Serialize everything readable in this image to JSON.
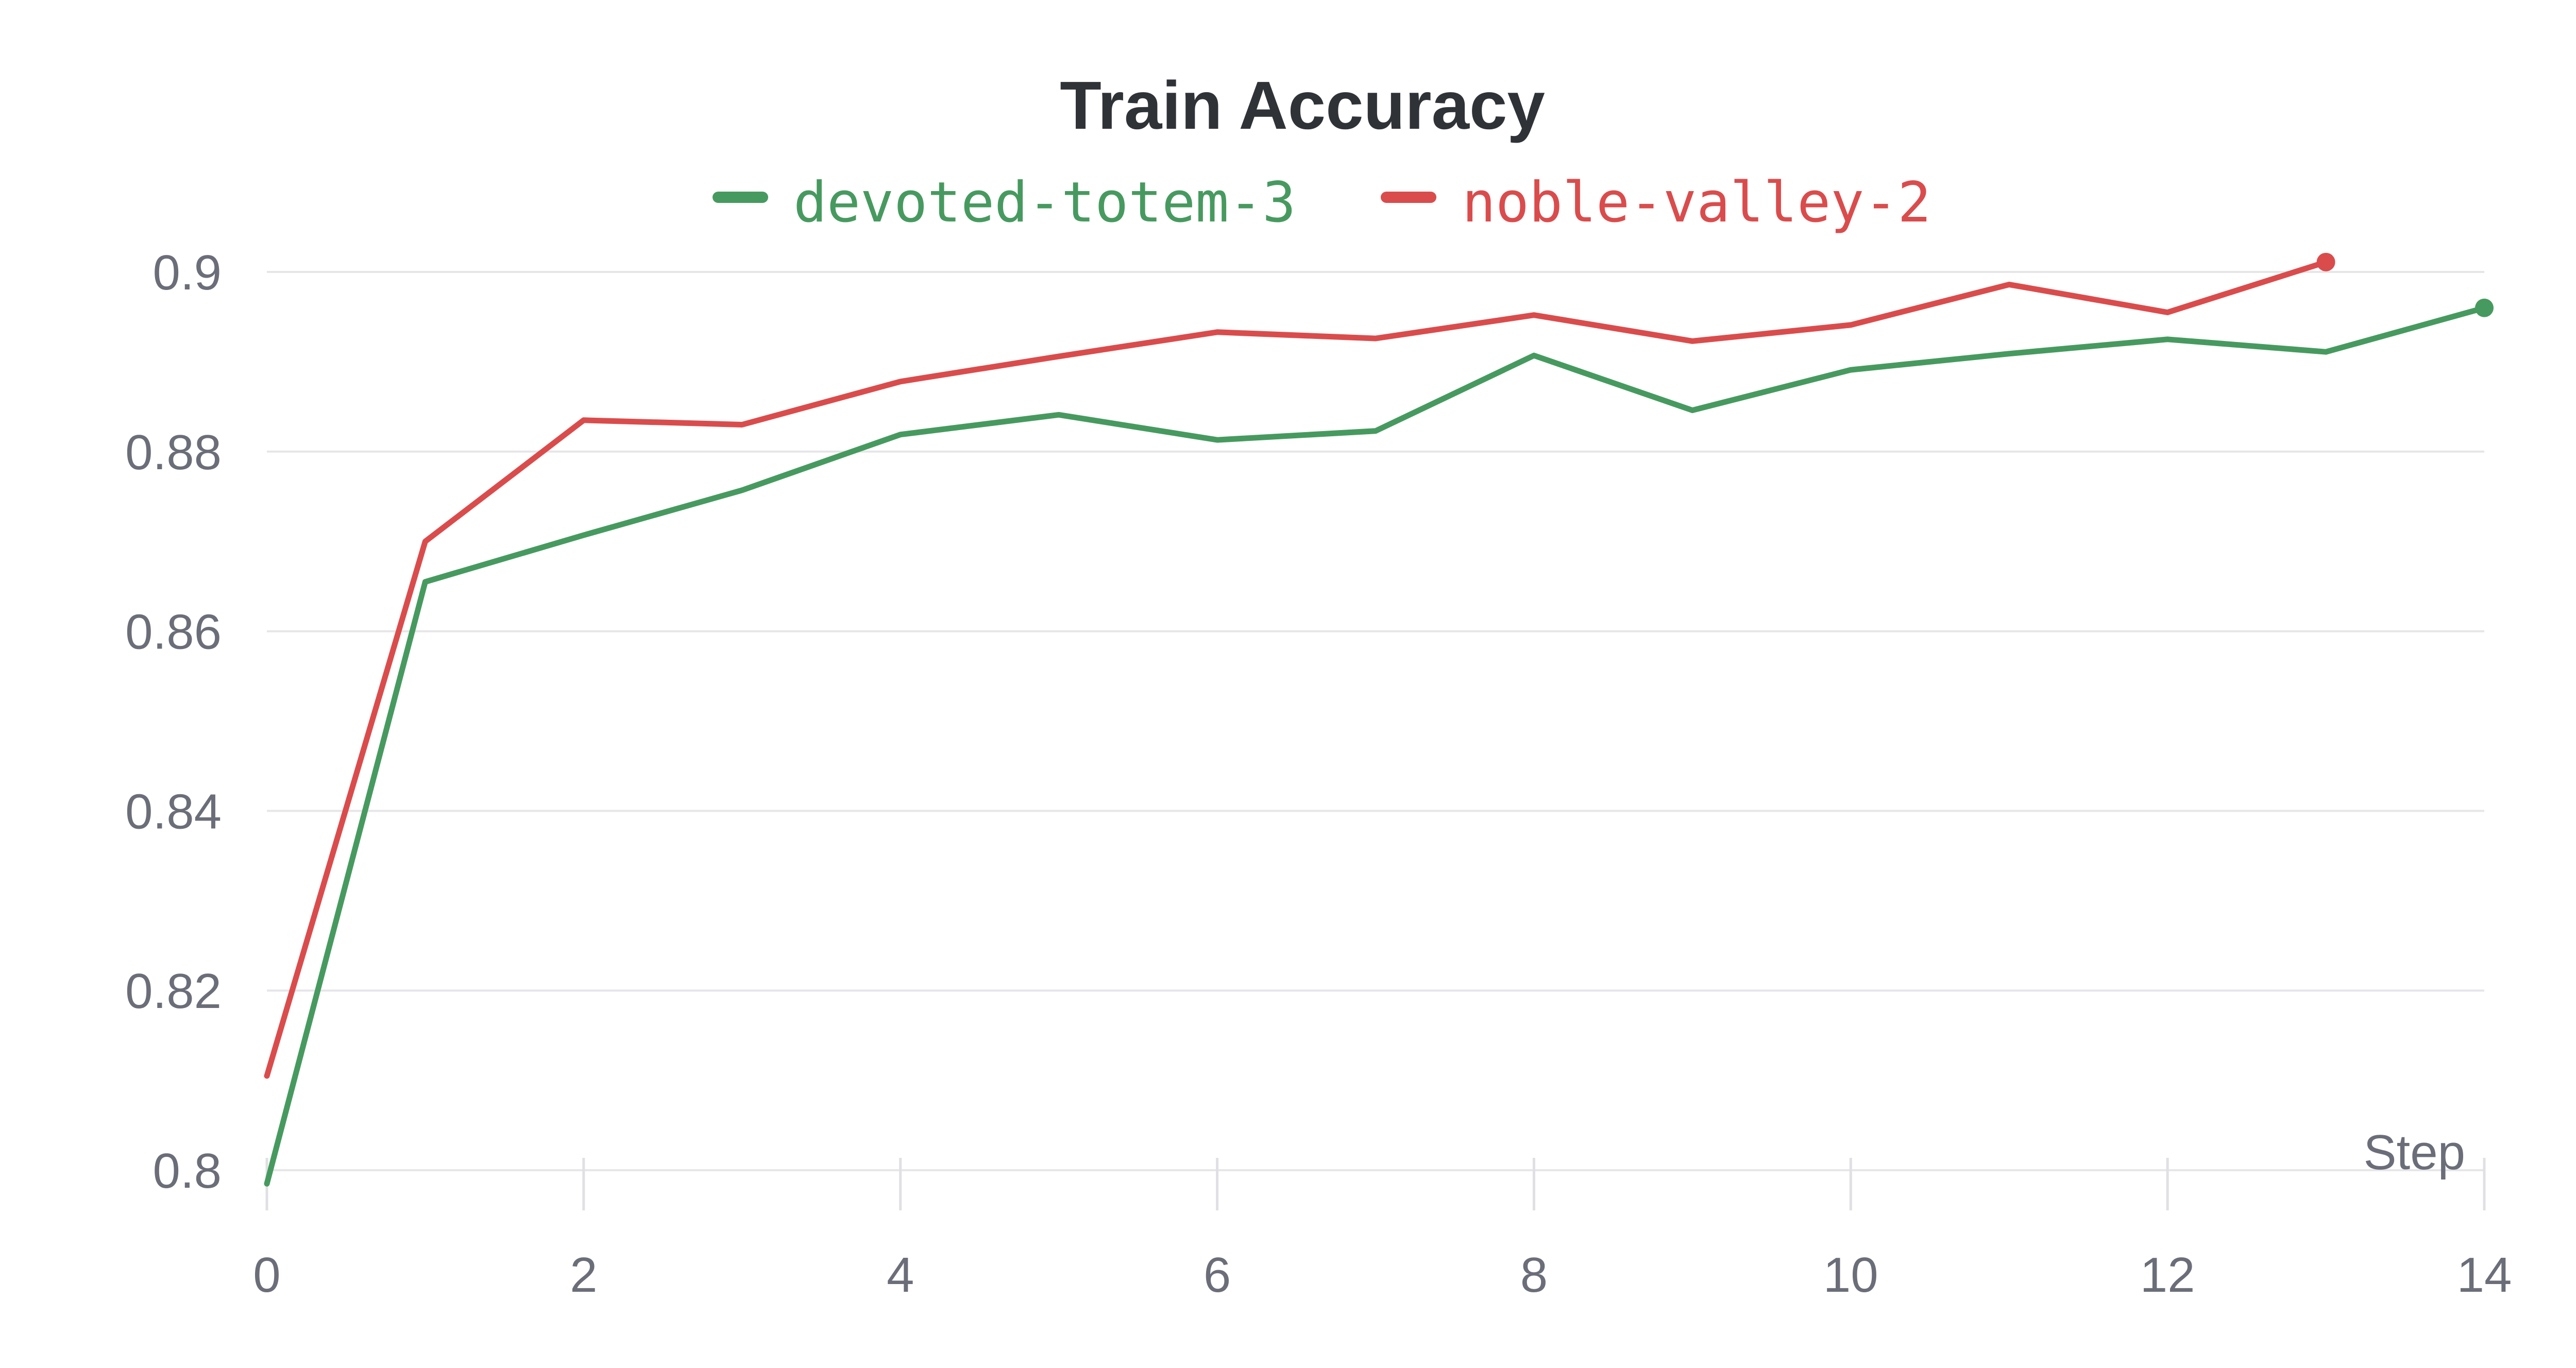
{
  "chart_data": {
    "type": "line",
    "title": "Train Accuracy",
    "xlabel": "Step",
    "ylabel": "",
    "xlim": [
      0,
      14
    ],
    "ylim": [
      0.8,
      0.9
    ],
    "x_ticks": [
      0,
      2,
      4,
      6,
      8,
      10,
      12,
      14
    ],
    "x_tick_labels": [
      "0",
      "2",
      "4",
      "6",
      "8",
      "10",
      "12",
      "14"
    ],
    "y_ticks": [
      0.8,
      0.82,
      0.84,
      0.86,
      0.88,
      0.9
    ],
    "y_tick_labels": [
      "0.8",
      "0.82",
      "0.84",
      "0.86",
      "0.88",
      "0.9"
    ],
    "grid": true,
    "legend_position": "top-center",
    "series": [
      {
        "name": "devoted-totem-3",
        "color": "#479a5f",
        "x": [
          0,
          1,
          2,
          3,
          4,
          5,
          6,
          7,
          8,
          9,
          10,
          11,
          12,
          13,
          14
        ],
        "values": [
          0.7985,
          0.8655,
          0.8707,
          0.8757,
          0.8819,
          0.8841,
          0.8813,
          0.8823,
          0.8907,
          0.8846,
          0.8891,
          0.8909,
          0.8925,
          0.8911,
          0.896
        ],
        "end_marker": true
      },
      {
        "name": "noble-valley-2",
        "color": "#da4c4c",
        "x": [
          0,
          1,
          2,
          3,
          4,
          5,
          6,
          7,
          8,
          9,
          10,
          11,
          12,
          13
        ],
        "values": [
          0.8105,
          0.87,
          0.8835,
          0.883,
          0.8878,
          0.8906,
          0.8933,
          0.8926,
          0.8952,
          0.8923,
          0.8941,
          0.8986,
          0.8955,
          0.9011
        ],
        "end_marker": true
      }
    ]
  }
}
